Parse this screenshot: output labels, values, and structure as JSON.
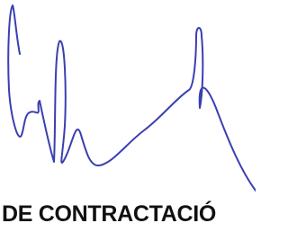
{
  "caption": "DE CONTRACTACIÓ"
}
